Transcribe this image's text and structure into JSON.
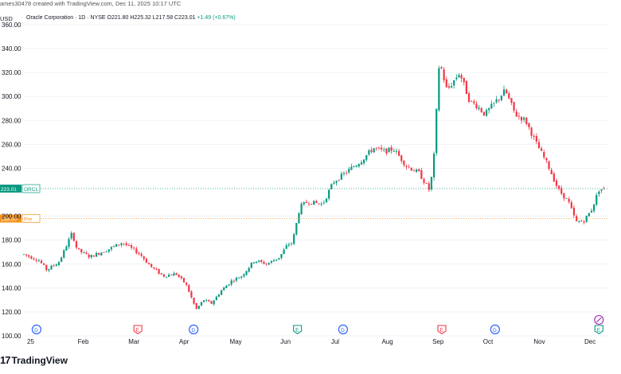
{
  "header": {
    "published_line": "ames30478 created with TradingView.com, Dec 11, 2025 10:17 UTC",
    "currency": "USD",
    "symbol_line": "Oracle Corporation · 1D · NYSE",
    "ohlc": {
      "o": "O221.80",
      "h": "H225.32",
      "l": "L217.58",
      "c": "C223.01",
      "change": "+1.49 (+0.67%)"
    }
  },
  "logo_text": "TradingView",
  "colors": {
    "up": "#089981",
    "down": "#f23645",
    "last_price": "#089981",
    "pre_market": "#f7931a"
  },
  "chart_data": {
    "type": "candlestick",
    "y_ticks": [
      "360.00",
      "340.00",
      "320.00",
      "300.00",
      "280.00",
      "260.00",
      "240.00",
      "200.00",
      "180.00",
      "160.00",
      "140.00",
      "120.00",
      "100.00"
    ],
    "ylim": [
      98,
      362
    ],
    "x_labels": [
      {
        "label": "25",
        "t": 0
      },
      {
        "label": "Feb",
        "t": 1
      },
      {
        "label": "Mar",
        "t": 2
      },
      {
        "label": "Apr",
        "t": 3
      },
      {
        "label": "May",
        "t": 4
      },
      {
        "label": "Jun",
        "t": 5
      },
      {
        "label": "Jul",
        "t": 6
      },
      {
        "label": "Aug",
        "t": 7
      },
      {
        "label": "Sep",
        "t": 8
      },
      {
        "label": "Oct",
        "t": 9
      },
      {
        "label": "Nov",
        "t": 10
      },
      {
        "label": "Dec",
        "t": 11
      }
    ],
    "price_lines": [
      {
        "label": "223.01",
        "tag": "ORCL",
        "value": 223.01,
        "color": "#089981"
      },
      {
        "label": "198.00",
        "tag": "Pre",
        "value": 198.0,
        "color": "#f7931a"
      }
    ],
    "events": [
      {
        "type": "D",
        "t": 0.25
      },
      {
        "type": "E",
        "t": 2.25
      },
      {
        "type": "D",
        "t": 3.35
      },
      {
        "type": "E",
        "t": 5.4
      },
      {
        "type": "D",
        "t": 6.3
      },
      {
        "type": "E",
        "t": 8.25
      },
      {
        "type": "D",
        "t": 9.3
      },
      {
        "type": "E",
        "t": 11.35
      }
    ],
    "anchors": [
      [
        0.0,
        168
      ],
      [
        0.3,
        163
      ],
      [
        0.45,
        155
      ],
      [
        0.7,
        162
      ],
      [
        0.95,
        186
      ],
      [
        1.05,
        172
      ],
      [
        1.3,
        166
      ],
      [
        1.65,
        172
      ],
      [
        1.95,
        178
      ],
      [
        2.05,
        175
      ],
      [
        2.3,
        168
      ],
      [
        2.5,
        158
      ],
      [
        2.75,
        150
      ],
      [
        3.0,
        152
      ],
      [
        3.2,
        143
      ],
      [
        3.4,
        122
      ],
      [
        3.55,
        130
      ],
      [
        3.7,
        127
      ],
      [
        3.9,
        138
      ],
      [
        4.1,
        146
      ],
      [
        4.3,
        150
      ],
      [
        4.55,
        163
      ],
      [
        4.8,
        160
      ],
      [
        5.05,
        166
      ],
      [
        5.2,
        176
      ],
      [
        5.3,
        178
      ],
      [
        5.45,
        208
      ],
      [
        5.6,
        212
      ],
      [
        5.9,
        210
      ],
      [
        6.1,
        228
      ],
      [
        6.4,
        238
      ],
      [
        6.65,
        246
      ],
      [
        6.9,
        257
      ],
      [
        7.1,
        254
      ],
      [
        7.3,
        256
      ],
      [
        7.55,
        242
      ],
      [
        7.8,
        236
      ],
      [
        8.0,
        222
      ],
      [
        8.08,
        240
      ],
      [
        8.2,
        330
      ],
      [
        8.35,
        305
      ],
      [
        8.6,
        320
      ],
      [
        8.8,
        296
      ],
      [
        8.95,
        292
      ],
      [
        9.1,
        285
      ],
      [
        9.3,
        295
      ],
      [
        9.5,
        305
      ],
      [
        9.7,
        285
      ],
      [
        9.9,
        280
      ],
      [
        10.1,
        262
      ],
      [
        10.35,
        242
      ],
      [
        10.55,
        222
      ],
      [
        10.75,
        212
      ],
      [
        10.9,
        195
      ],
      [
        11.05,
        196
      ],
      [
        11.2,
        205
      ],
      [
        11.35,
        222
      ],
      [
        11.45,
        223.01
      ]
    ]
  }
}
